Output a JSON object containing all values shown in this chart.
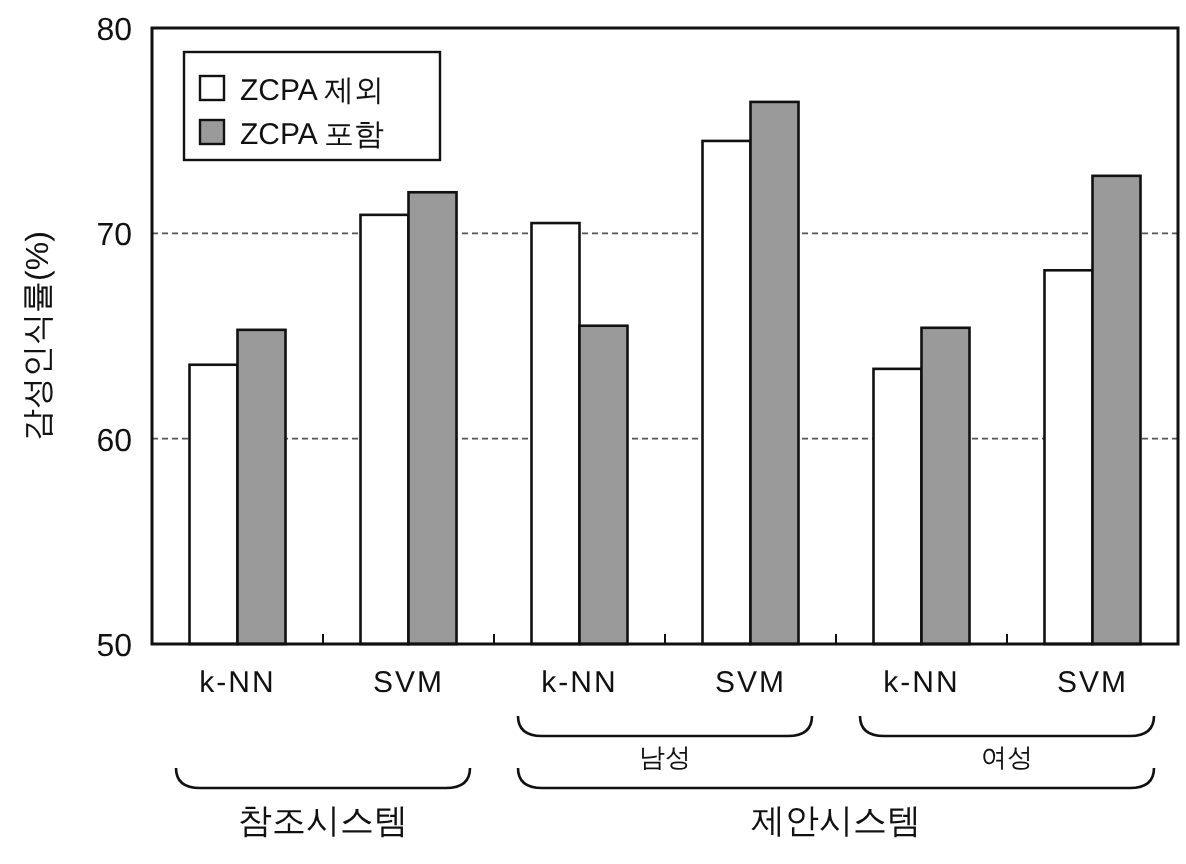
{
  "chart_data": {
    "type": "bar",
    "ylabel": "감성인식률(%)",
    "categories": [
      "k-NN",
      "SVM",
      "k-NN",
      "SVM",
      "k-NN",
      "SVM"
    ],
    "series": [
      {
        "name": "ZCPA 제외",
        "color": "#ffffff",
        "values": [
          63.6,
          70.9,
          70.5,
          74.5,
          63.4,
          68.2
        ]
      },
      {
        "name": "ZCPA 포함",
        "color": "#9a9a9a",
        "values": [
          65.3,
          72.0,
          65.5,
          76.4,
          65.4,
          72.8
        ]
      }
    ],
    "ylim": [
      50,
      80
    ],
    "yticks": [
      50,
      60,
      70,
      80
    ],
    "grid": "y",
    "legend": "top left",
    "annotations": [
      "남성",
      "여성",
      "참조시스템",
      "제안시스템"
    ]
  }
}
